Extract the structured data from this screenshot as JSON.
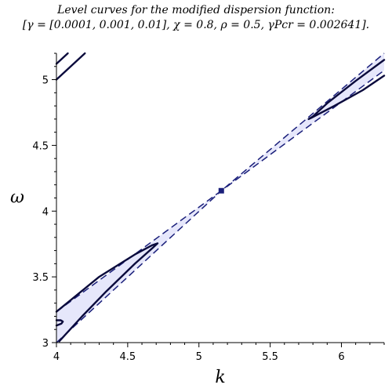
{
  "chart_data": {
    "type": "contour",
    "title_line1": "Level curves for the modified dispersion function:",
    "title_line2": "[γ = [0.0001, 0.001, 0.01], χ = 0.8, ρ = 0.5, γPcr = 0.002641].",
    "xlabel": "k",
    "ylabel": "ω",
    "xlim": [
      4.0,
      6.3
    ],
    "ylim": [
      3.0,
      5.2
    ],
    "x_ticks": [
      4,
      4.5,
      5,
      5.5,
      6
    ],
    "x_tick_labels": [
      "4",
      "4.5",
      "5",
      "5.5",
      "6"
    ],
    "y_ticks": [
      3,
      3.5,
      4,
      4.5,
      5
    ],
    "y_tick_labels": [
      "3",
      "3.5",
      "4",
      "4.5",
      "5"
    ],
    "grid": false,
    "colors": {
      "fill": "#e6e7fb",
      "curve": "#0a0a3c",
      "dashed": "#1a1f7a",
      "point": "#1a1f7a"
    },
    "critical_point": {
      "k": 5.157,
      "omega": 4.155
    },
    "dashed_boundaries": [
      {
        "name": "upper",
        "points": [
          [
            4.0,
            3.235
          ],
          [
            5.157,
            4.155
          ],
          [
            6.3,
            5.2
          ]
        ]
      },
      {
        "name": "lower",
        "points": [
          [
            4.0,
            3.0
          ],
          [
            5.157,
            4.155
          ],
          [
            6.3,
            5.07
          ]
        ]
      }
    ],
    "solid_curves": [
      {
        "name": "lower-left-outer",
        "points": [
          [
            4.0,
            3.235
          ],
          [
            4.3,
            3.5
          ],
          [
            4.55,
            3.67
          ],
          [
            4.67,
            3.74
          ],
          [
            4.71,
            3.755
          ],
          [
            4.68,
            3.725
          ],
          [
            4.55,
            3.6
          ],
          [
            4.35,
            3.39
          ],
          [
            4.18,
            3.2
          ],
          [
            4.02,
            3.01
          ]
        ]
      },
      {
        "name": "lower-left-inner",
        "points": [
          [
            4.0,
            3.13
          ],
          [
            4.035,
            3.145
          ],
          [
            4.045,
            3.16
          ],
          [
            4.03,
            3.17
          ],
          [
            4.0,
            3.17
          ]
        ]
      },
      {
        "name": "upper-right",
        "points": [
          [
            6.3,
            5.15
          ],
          [
            6.1,
            4.99
          ],
          [
            5.9,
            4.82
          ],
          [
            5.8,
            4.72
          ],
          [
            5.77,
            4.7
          ],
          [
            5.79,
            4.71
          ],
          [
            5.95,
            4.8
          ],
          [
            6.15,
            4.92
          ],
          [
            6.3,
            5.03
          ]
        ]
      },
      {
        "name": "top-left-outer",
        "points": [
          [
            4.0,
            5.0
          ],
          [
            4.2,
            5.2
          ]
        ]
      },
      {
        "name": "top-left-inner",
        "points": [
          [
            4.0,
            5.12
          ],
          [
            4.08,
            5.2
          ]
        ]
      }
    ]
  }
}
